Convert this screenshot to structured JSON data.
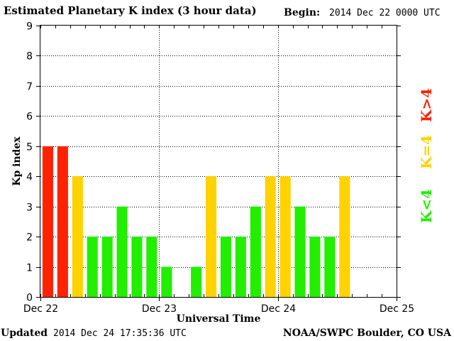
{
  "header": {
    "title": "Estimated Planetary K index (3 hour data)",
    "begin_label": "Begin:",
    "begin_value": "2014 Dec 22 0000 UTC"
  },
  "footer": {
    "updated_label": "Updated",
    "updated_value": "2014 Dec 24 17:35:36 UTC",
    "source": "NOAA/SWPC Boulder, CO USA"
  },
  "colors": {
    "storm": "#ff2200",
    "active": "#ffd200",
    "quiet": "#22ee00",
    "grid": "#000000",
    "background": "#ffffff"
  },
  "legend": [
    {
      "label": "K>4",
      "color": "#ff2200"
    },
    {
      "label": "K=4",
      "color": "#ffd200"
    },
    {
      "label": "K<4",
      "color": "#22ee00"
    }
  ],
  "chart_data": {
    "type": "bar",
    "title": "Estimated Planetary K index (3 hour data)",
    "xlabel": "Universal Time",
    "ylabel": "Kp index",
    "ylim": [
      0,
      9
    ],
    "yticks": [
      0,
      1,
      2,
      3,
      4,
      5,
      6,
      7,
      8,
      9
    ],
    "xlim_hours": [
      0,
      72
    ],
    "xtick_labels": [
      "Dec 22",
      "Dec 23",
      "Dec 24",
      "Dec 25"
    ],
    "xtick_hours": [
      0,
      24,
      48,
      72
    ],
    "bar_interval_hours": 3,
    "grid": true,
    "values": [
      5,
      5,
      4,
      2,
      2,
      3,
      2,
      2,
      1,
      0,
      1,
      4,
      2,
      2,
      3,
      4,
      4,
      3,
      2,
      2,
      4
    ]
  }
}
